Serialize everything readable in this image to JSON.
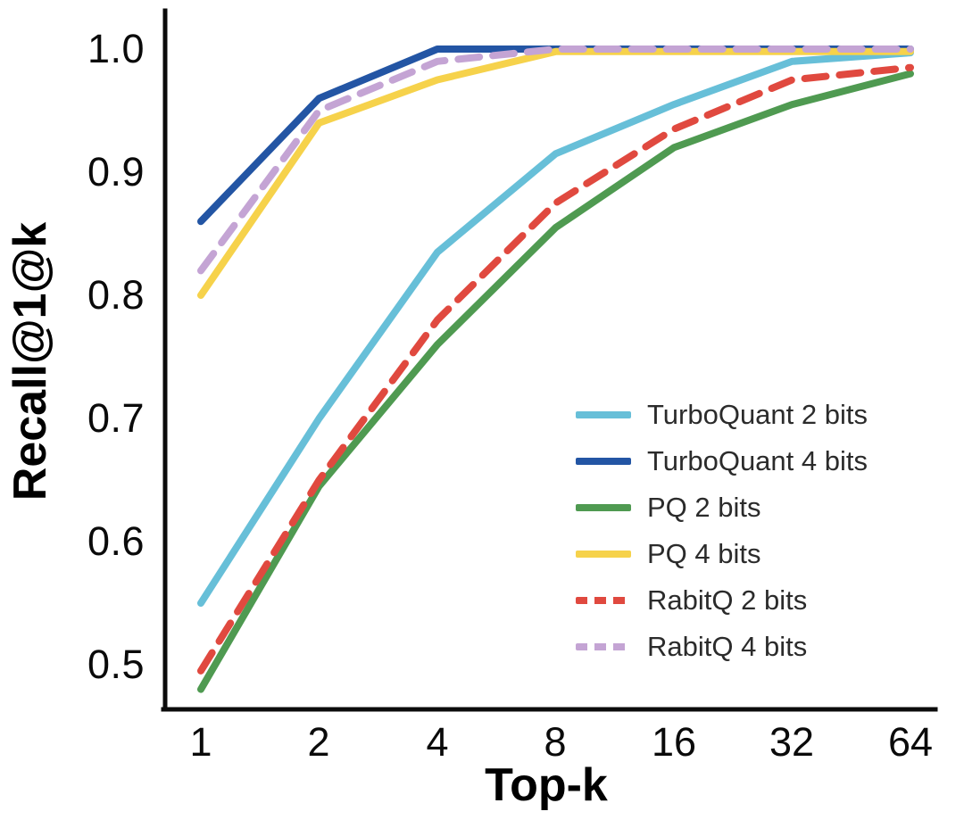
{
  "figure": {
    "background": "#ffffff",
    "axis_color": "#0b0b0b"
  },
  "chart_data": {
    "type": "line",
    "title": "",
    "xlabel": "Top-k",
    "ylabel": "Recall@1@k",
    "x_scale": "log2",
    "x": [
      1,
      2,
      4,
      8,
      16,
      32,
      64
    ],
    "xtick_labels": [
      "1",
      "2",
      "4",
      "8",
      "16",
      "32",
      "64"
    ],
    "ytick_values": [
      0.5,
      0.6,
      0.7,
      0.8,
      0.9,
      1.0
    ],
    "ytick_labels": [
      "0.5",
      "0.6",
      "0.7",
      "0.8",
      "0.9",
      "1.0"
    ],
    "ylim": [
      0.46,
      1.03
    ],
    "grid": false,
    "legend_position": "inside lower right",
    "series": [
      {
        "name": "TurboQuant 2 bits",
        "color": "#67BFD8",
        "style": "solid",
        "values": [
          0.55,
          0.7,
          0.835,
          0.915,
          0.955,
          0.99,
          0.997
        ]
      },
      {
        "name": "TurboQuant 4 bits",
        "color": "#2355A4",
        "style": "solid",
        "values": [
          0.86,
          0.96,
          1.0,
          1.0,
          1.0,
          1.0,
          1.0
        ]
      },
      {
        "name": "PQ 2 bits",
        "color": "#4F9A51",
        "style": "solid",
        "values": [
          0.48,
          0.645,
          0.76,
          0.855,
          0.92,
          0.955,
          0.98
        ]
      },
      {
        "name": "PQ 4 bits",
        "color": "#F6D24B",
        "style": "solid",
        "values": [
          0.8,
          0.94,
          0.975,
          0.998,
          0.998,
          0.998,
          0.998
        ]
      },
      {
        "name": "RabitQ 2 bits",
        "color": "#E0493F",
        "style": "dashed",
        "values": [
          0.495,
          0.65,
          0.78,
          0.875,
          0.935,
          0.975,
          0.985
        ]
      },
      {
        "name": "RabitQ 4 bits",
        "color": "#C4A4D4",
        "style": "dashed",
        "values": [
          0.82,
          0.95,
          0.99,
          1.0,
          1.0,
          1.0,
          1.0
        ]
      }
    ]
  }
}
